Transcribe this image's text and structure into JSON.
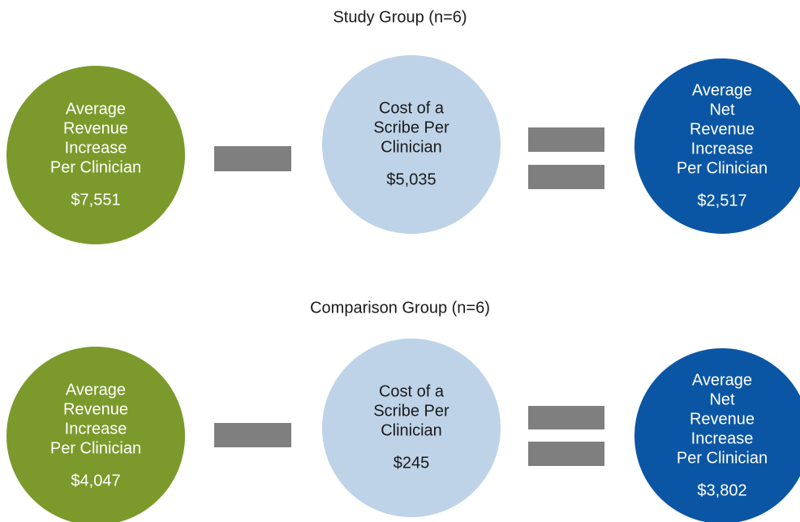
{
  "groups": [
    {
      "title": "Study Group (n=6)",
      "circles": [
        {
          "lines": [
            "Average",
            "Revenue",
            "Increase",
            "Per Clinician"
          ],
          "value": "$7,551"
        },
        {
          "lines": [
            "Cost of a",
            "Scribe Per",
            "Clinician"
          ],
          "value": "$5,035"
        },
        {
          "lines": [
            "Average",
            "Net",
            "Revenue",
            "Increase",
            "Per Clinician"
          ],
          "value": "$2,517"
        }
      ]
    },
    {
      "title": "Comparison Group (n=6)",
      "circles": [
        {
          "lines": [
            "Average",
            "Revenue",
            "Increase",
            "Per Clinician"
          ],
          "value": "$4,047"
        },
        {
          "lines": [
            "Cost of a",
            "Scribe Per",
            "Clinician"
          ],
          "value": "$245"
        },
        {
          "lines": [
            "Average",
            "Net",
            "Revenue",
            "Increase",
            "Per Clinician"
          ],
          "value": "$3,802"
        }
      ]
    }
  ]
}
